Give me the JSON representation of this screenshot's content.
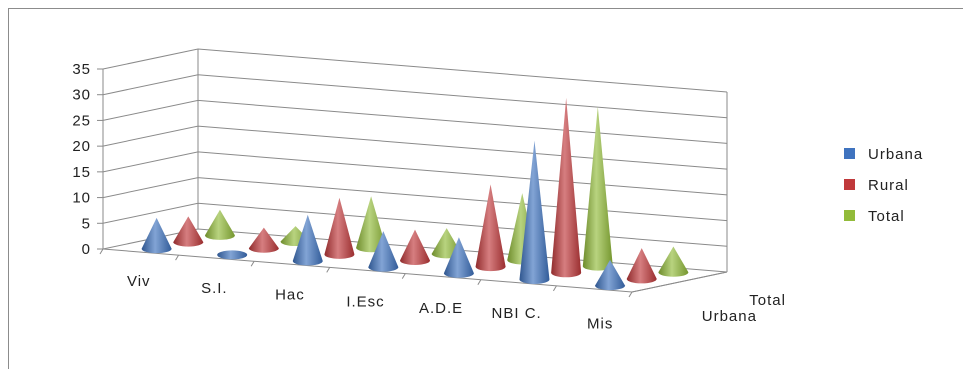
{
  "chart_data": {
    "type": "bar",
    "style": "3d-cone",
    "categories": [
      "Viv",
      "S.I.",
      "Hac",
      "I.Esc",
      "A.D.E",
      "NBI C.",
      "Mis"
    ],
    "series": [
      {
        "name": "Urbana",
        "values": [
          6,
          0,
          9,
          7,
          7,
          27,
          5
        ],
        "color": "#3f73bf"
      },
      {
        "name": "Rural",
        "values": [
          5,
          4,
          11,
          6,
          16,
          34,
          6
        ],
        "color": "#c0393b"
      },
      {
        "name": "Total",
        "values": [
          5,
          3,
          10,
          5,
          13,
          31,
          5
        ],
        "color": "#92bb3a"
      }
    ],
    "depth_axis_labels": [
      "Urbana",
      "Total"
    ],
    "yticks": [
      "0",
      "5",
      "10",
      "15",
      "20",
      "25",
      "30",
      "35"
    ],
    "ylim": [
      0,
      35
    ],
    "grid": true,
    "legend_position": "right"
  }
}
